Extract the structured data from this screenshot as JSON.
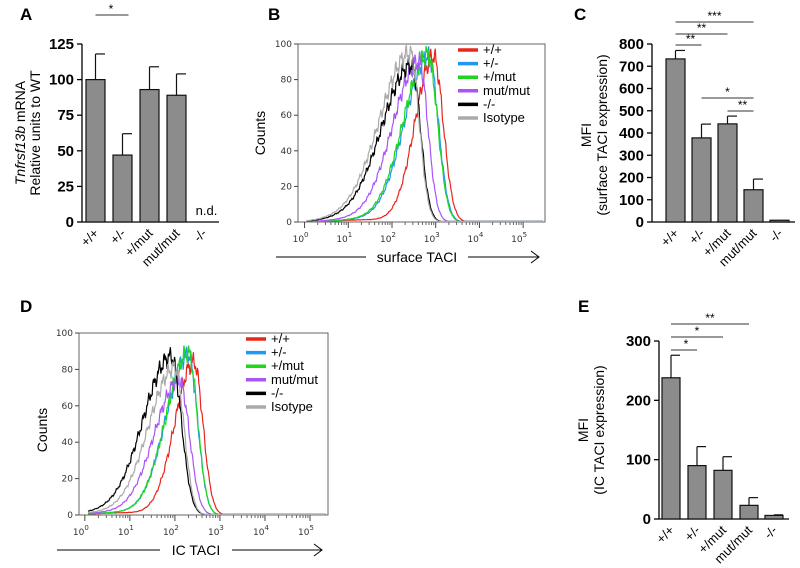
{
  "chart_data": [
    {
      "panel": "A",
      "type": "bar",
      "ylabel_gene": "Tnfrsf13b",
      "ylabel_rest": " mRNA",
      "ylabel_line2": "Relative units to WT",
      "categories": [
        "+/+",
        "+/-",
        "+/mut",
        "mut/mut",
        "-/-"
      ],
      "values": [
        100,
        47,
        93,
        89,
        0
      ],
      "errors": [
        18,
        15,
        16,
        15,
        0
      ],
      "annotations": [
        null,
        null,
        null,
        null,
        "n.d."
      ],
      "ylim": [
        0,
        125
      ],
      "yticks": [
        0,
        25,
        50,
        75,
        100,
        125
      ],
      "significance": [
        {
          "from": 0,
          "to": 1,
          "label": "*"
        }
      ]
    },
    {
      "panel": "B",
      "type": "line",
      "title": "",
      "xlabel": "surface TACI",
      "ylabel": "Counts",
      "xscale": "log",
      "xlim_log10": [
        -0.15,
        5.5
      ],
      "ylim": [
        0,
        100
      ],
      "yticks": [
        0,
        20,
        40,
        60,
        80,
        100
      ],
      "xtick_exponents": [
        "0",
        "1",
        "2",
        "3",
        "4",
        "5"
      ],
      "xtick_base": "10",
      "legend_position": "top-right",
      "series": [
        {
          "name": "+/+",
          "color": "#e8261c",
          "peak_log10": 2.95,
          "peak_count": 93,
          "sigma_left": 0.42,
          "sigma_right": 0.22
        },
        {
          "name": "+/-",
          "color": "#2196f3",
          "peak_log10": 2.84,
          "peak_count": 93,
          "sigma_left": 0.55,
          "sigma_right": 0.22
        },
        {
          "name": "+/mut",
          "color": "#1ed61e",
          "peak_log10": 2.82,
          "peak_count": 94,
          "sigma_left": 0.56,
          "sigma_right": 0.22
        },
        {
          "name": "mut/mut",
          "color": "#a855f7",
          "peak_log10": 2.62,
          "peak_count": 90,
          "sigma_left": 0.6,
          "sigma_right": 0.2
        },
        {
          "name": "-/-",
          "color": "#000000",
          "peak_log10": 2.45,
          "peak_count": 88,
          "sigma_left": 0.68,
          "sigma_right": 0.2
        },
        {
          "name": "Isotype",
          "color": "#aaaaaa",
          "peak_log10": 2.42,
          "peak_count": 95,
          "sigma_left": 0.7,
          "sigma_right": 0.2
        }
      ]
    },
    {
      "panel": "C",
      "type": "bar",
      "ylabel_line1": "MFI",
      "ylabel_line2": "(surface TACI expression)",
      "categories": [
        "+/+",
        "+/-",
        "+/mut",
        "mut/mut",
        "-/-"
      ],
      "values": [
        733,
        378,
        441,
        145,
        8
      ],
      "errors": [
        38,
        62,
        35,
        48,
        0
      ],
      "ylim": [
        0,
        800
      ],
      "yticks": [
        0,
        100,
        200,
        300,
        400,
        500,
        600,
        700,
        800
      ],
      "significance": [
        {
          "from": 0,
          "to": 3,
          "label": "***"
        },
        {
          "from": 0,
          "to": 2,
          "label": "**"
        },
        {
          "from": 0,
          "to": 1,
          "label": "**"
        },
        {
          "from": 1,
          "to": 3,
          "label": "*"
        },
        {
          "from": 2,
          "to": 3,
          "label": "**"
        }
      ]
    },
    {
      "panel": "D",
      "type": "line",
      "xlabel": "IC TACI",
      "ylabel": "Counts",
      "xscale": "log",
      "xlim_log10": [
        -0.13,
        5.4
      ],
      "ylim": [
        0,
        100
      ],
      "yticks": [
        0,
        20,
        40,
        60,
        80,
        100
      ],
      "xtick_exponents": [
        "0",
        "1",
        "2",
        "3",
        "4",
        "5"
      ],
      "xtick_base": "10",
      "legend_position": "top-right",
      "series": [
        {
          "name": "+/+",
          "color": "#e8261c",
          "peak_log10": 2.42,
          "peak_count": 84,
          "sigma_left": 0.42,
          "sigma_right": 0.2
        },
        {
          "name": "+/-",
          "color": "#2196f3",
          "peak_log10": 2.3,
          "peak_count": 88,
          "sigma_left": 0.5,
          "sigma_right": 0.2
        },
        {
          "name": "+/mut",
          "color": "#1ed61e",
          "peak_log10": 2.3,
          "peak_count": 89,
          "sigma_left": 0.5,
          "sigma_right": 0.2
        },
        {
          "name": "mut/mut",
          "color": "#a855f7",
          "peak_log10": 2.1,
          "peak_count": 74,
          "sigma_left": 0.55,
          "sigma_right": 0.22
        },
        {
          "name": "-/-",
          "color": "#000000",
          "peak_log10": 1.92,
          "peak_count": 87,
          "sigma_left": 0.62,
          "sigma_right": 0.22
        },
        {
          "name": "Isotype",
          "color": "#aaaaaa",
          "peak_log10": 2.0,
          "peak_count": 81,
          "sigma_left": 0.58,
          "sigma_right": 0.2
        }
      ]
    },
    {
      "panel": "E",
      "type": "bar",
      "ylabel_line1": "MFI",
      "ylabel_line2": "(IC TACI expression)",
      "categories": [
        "+/+",
        "+/-",
        "+/mut",
        "mut/mut",
        "-/-"
      ],
      "values": [
        238,
        90,
        82,
        23,
        6
      ],
      "errors": [
        38,
        32,
        23,
        13,
        1
      ],
      "ylim": [
        0,
        300
      ],
      "yticks": [
        0,
        100,
        200,
        300
      ],
      "significance": [
        {
          "from": 0,
          "to": 3,
          "label": "**"
        },
        {
          "from": 0,
          "to": 2,
          "label": "*"
        },
        {
          "from": 0,
          "to": 1,
          "label": "*"
        }
      ]
    }
  ],
  "bar_color": "#8c8c8c"
}
